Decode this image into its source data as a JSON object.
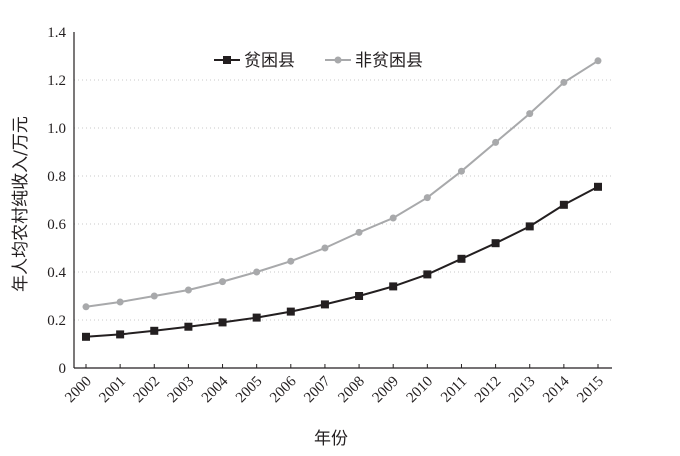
{
  "chart_data": {
    "type": "line",
    "xlabel": "年份",
    "ylabel": "年人均农村纯收入/万元",
    "x": [
      "2000",
      "2001",
      "2002",
      "2003",
      "2004",
      "2005",
      "2006",
      "2007",
      "2008",
      "2009",
      "2010",
      "2011",
      "2012",
      "2013",
      "2014",
      "2015"
    ],
    "ylim": [
      0,
      1.4
    ],
    "yticks": [
      "0",
      "0.2",
      "0.4",
      "0.6",
      "0.8",
      "1.0",
      "1.2",
      "1.4"
    ],
    "grid": "horizontal dotted",
    "legend_position": "top",
    "series": [
      {
        "name": "贫困县",
        "color": "#231f20",
        "marker": "square",
        "values": [
          0.13,
          0.14,
          0.155,
          0.172,
          0.19,
          0.21,
          0.235,
          0.265,
          0.3,
          0.34,
          0.39,
          0.455,
          0.52,
          0.59,
          0.68,
          0.755
        ]
      },
      {
        "name": "非贫困县",
        "color": "#a8a9ab",
        "marker": "circle",
        "values": [
          0.255,
          0.275,
          0.3,
          0.325,
          0.36,
          0.4,
          0.445,
          0.5,
          0.565,
          0.625,
          0.71,
          0.82,
          0.94,
          1.06,
          1.19,
          1.28
        ]
      }
    ]
  }
}
